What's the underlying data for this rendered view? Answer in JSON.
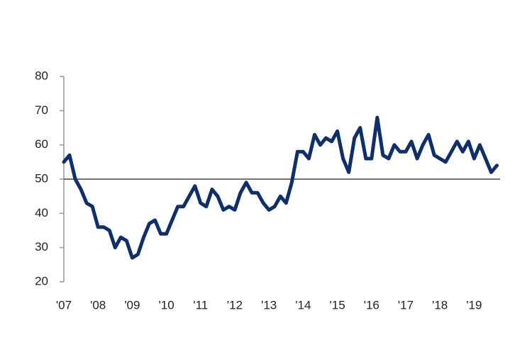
{
  "chart_data": {
    "type": "line",
    "categories": [
      "'07",
      null,
      null,
      null,
      null,
      null,
      "'08",
      null,
      null,
      null,
      null,
      null,
      "'09",
      null,
      null,
      null,
      null,
      null,
      "'10",
      null,
      null,
      null,
      null,
      null,
      "'11",
      null,
      null,
      null,
      null,
      null,
      "'12",
      null,
      null,
      null,
      null,
      null,
      "'13",
      null,
      null,
      null,
      null,
      null,
      "'14",
      null,
      null,
      null,
      null,
      null,
      "'15",
      null,
      null,
      null,
      null,
      null,
      "'16",
      null,
      null,
      null,
      null,
      null,
      "'17",
      null,
      null,
      null,
      null,
      null,
      "'18",
      null,
      null,
      null,
      null,
      null,
      "'19",
      null,
      null,
      null,
      null
    ],
    "series": [
      {
        "color": "#0d2f6e",
        "values": [
          55,
          57,
          50,
          47,
          43,
          42,
          36,
          36,
          35,
          30,
          33,
          32,
          27,
          28,
          33,
          37,
          38,
          34,
          34,
          38,
          42,
          42,
          45,
          48,
          43,
          42,
          47,
          45,
          41,
          42,
          41,
          46,
          49,
          46,
          46,
          43,
          41,
          42,
          45,
          43,
          49,
          58,
          58,
          56,
          63,
          60,
          62,
          61,
          64,
          56,
          52,
          62,
          65,
          56,
          56,
          68,
          57,
          56,
          60,
          58,
          58,
          61,
          56,
          60,
          63,
          57,
          56,
          55,
          58,
          61,
          58,
          61,
          56,
          60,
          56,
          52,
          54
        ]
      }
    ],
    "ylim": [
      20,
      80
    ],
    "yticks": [
      20,
      30,
      40,
      50,
      60,
      70,
      80
    ],
    "reference_line": 50
  }
}
